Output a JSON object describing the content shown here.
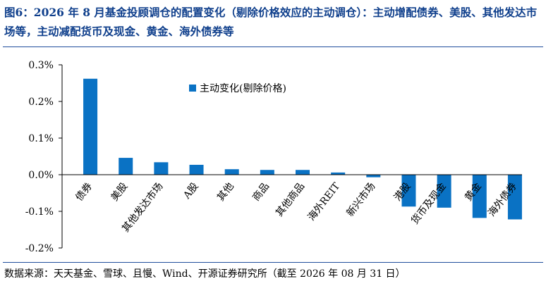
{
  "title": "图6：2026 年 8 月基金投顾调仓的配置变化（剔除价格效应的主动调仓）：主动增配债券、美股、其他发达市场等，主动减配货币及现金、黄金、海外债券等",
  "source": "数据来源：天天基金、雪球、且慢、Wind、开源证券研究所（截至 2026 年 08 月 31 日）",
  "colors": {
    "bar": "#0a72c4",
    "title": "#0f3f8c",
    "rule": "#1f4e9c"
  },
  "chart_data": {
    "type": "bar",
    "categories": [
      "债券",
      "美股",
      "其他发达市场",
      "A股",
      "其他",
      "商品",
      "其他商品",
      "海外REIT",
      "新兴市场",
      "港股",
      "货币及现金",
      "黄金",
      "海外债券"
    ],
    "series": [
      {
        "name": "主动变化(剔除价格)",
        "values": [
          0.262,
          0.046,
          0.034,
          0.027,
          0.015,
          0.013,
          0.013,
          0.006,
          -0.007,
          -0.087,
          -0.09,
          -0.118,
          -0.122
        ]
      }
    ],
    "ylim": [
      -0.2,
      0.3
    ],
    "yticks": [
      "-0.2%",
      "-0.1%",
      "0.0%",
      "0.1%",
      "0.2%",
      "0.3%"
    ],
    "ytick_values": [
      -0.2,
      -0.1,
      0.0,
      0.1,
      0.2,
      0.3
    ],
    "legend_position": "top-center",
    "grid": false,
    "xlabel": "",
    "ylabel": ""
  }
}
